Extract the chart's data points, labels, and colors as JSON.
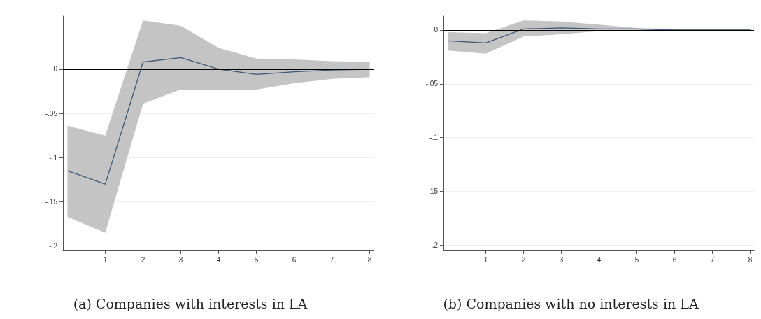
{
  "chart_data": [
    {
      "type": "line",
      "title": "(a) Companies with interests in LA",
      "x": [
        0,
        1,
        2,
        3,
        4,
        5,
        6,
        7,
        8
      ],
      "series": [
        {
          "color": "#3b5878",
          "values": [
            -0.115,
            -0.13,
            0.008,
            0.013,
            0,
            -0.006,
            -0.003,
            -0.001,
            0
          ],
          "lower": [
            -0.167,
            -0.185,
            -0.039,
            -0.023,
            -0.023,
            -0.023,
            -0.016,
            -0.011,
            -0.009
          ],
          "upper": [
            -0.064,
            -0.075,
            0.055,
            0.049,
            0.024,
            0.012,
            0.011,
            0.009,
            0.008
          ]
        }
      ],
      "xlim": [
        -0.12,
        8.1
      ],
      "xticks": [
        1,
        2,
        3,
        4,
        5,
        6,
        7,
        8
      ],
      "ylim": [
        -0.205,
        0.06
      ],
      "yticks": [
        {
          "value": -0.2,
          "label": "-.2"
        },
        {
          "value": -0.15,
          "label": "-.15"
        },
        {
          "value": -0.1,
          "label": "-.1"
        },
        {
          "value": -0.05,
          "label": "-.05"
        },
        0
      ],
      "ref_lines": [
        {
          "axis": "y",
          "value": 0,
          "label": null,
          "color": "#000000"
        }
      ],
      "grid": "y",
      "marker": "none",
      "line_style": "solid"
    },
    {
      "type": "line",
      "title": "(b) Companies with no interests in LA",
      "x": [
        0,
        1,
        2,
        3,
        4,
        5,
        6,
        7,
        8
      ],
      "series": [
        {
          "color": "#3b5878",
          "values": [
            -0.01,
            -0.012,
            0.001,
            0.002,
            0.001,
            0.001,
            0,
            0,
            0
          ],
          "lower": [
            -0.019,
            -0.022,
            -0.006,
            -0.004,
            -0.001,
            -0.0005,
            -0.001,
            -0.001,
            -0.001
          ],
          "upper": [
            -0.002,
            -0.003,
            0.009,
            0.008,
            0.005,
            0.002,
            0.001,
            0.001,
            0.001
          ]
        }
      ],
      "xlim": [
        -0.12,
        8.1
      ],
      "xticks": [
        1,
        2,
        3,
        4,
        5,
        6,
        7,
        8
      ],
      "ylim": [
        -0.205,
        0.013
      ],
      "yticks": [
        {
          "value": -0.2,
          "label": "-.2"
        },
        {
          "value": -0.15,
          "label": "-.15"
        },
        {
          "value": -0.1,
          "label": "-.1"
        },
        {
          "value": -0.05,
          "label": "-.05"
        },
        0
      ],
      "ref_lines": [
        {
          "axis": "y",
          "value": 0,
          "label": null,
          "color": "#000000"
        }
      ],
      "grid": "y",
      "marker": "none",
      "line_style": "solid"
    }
  ]
}
